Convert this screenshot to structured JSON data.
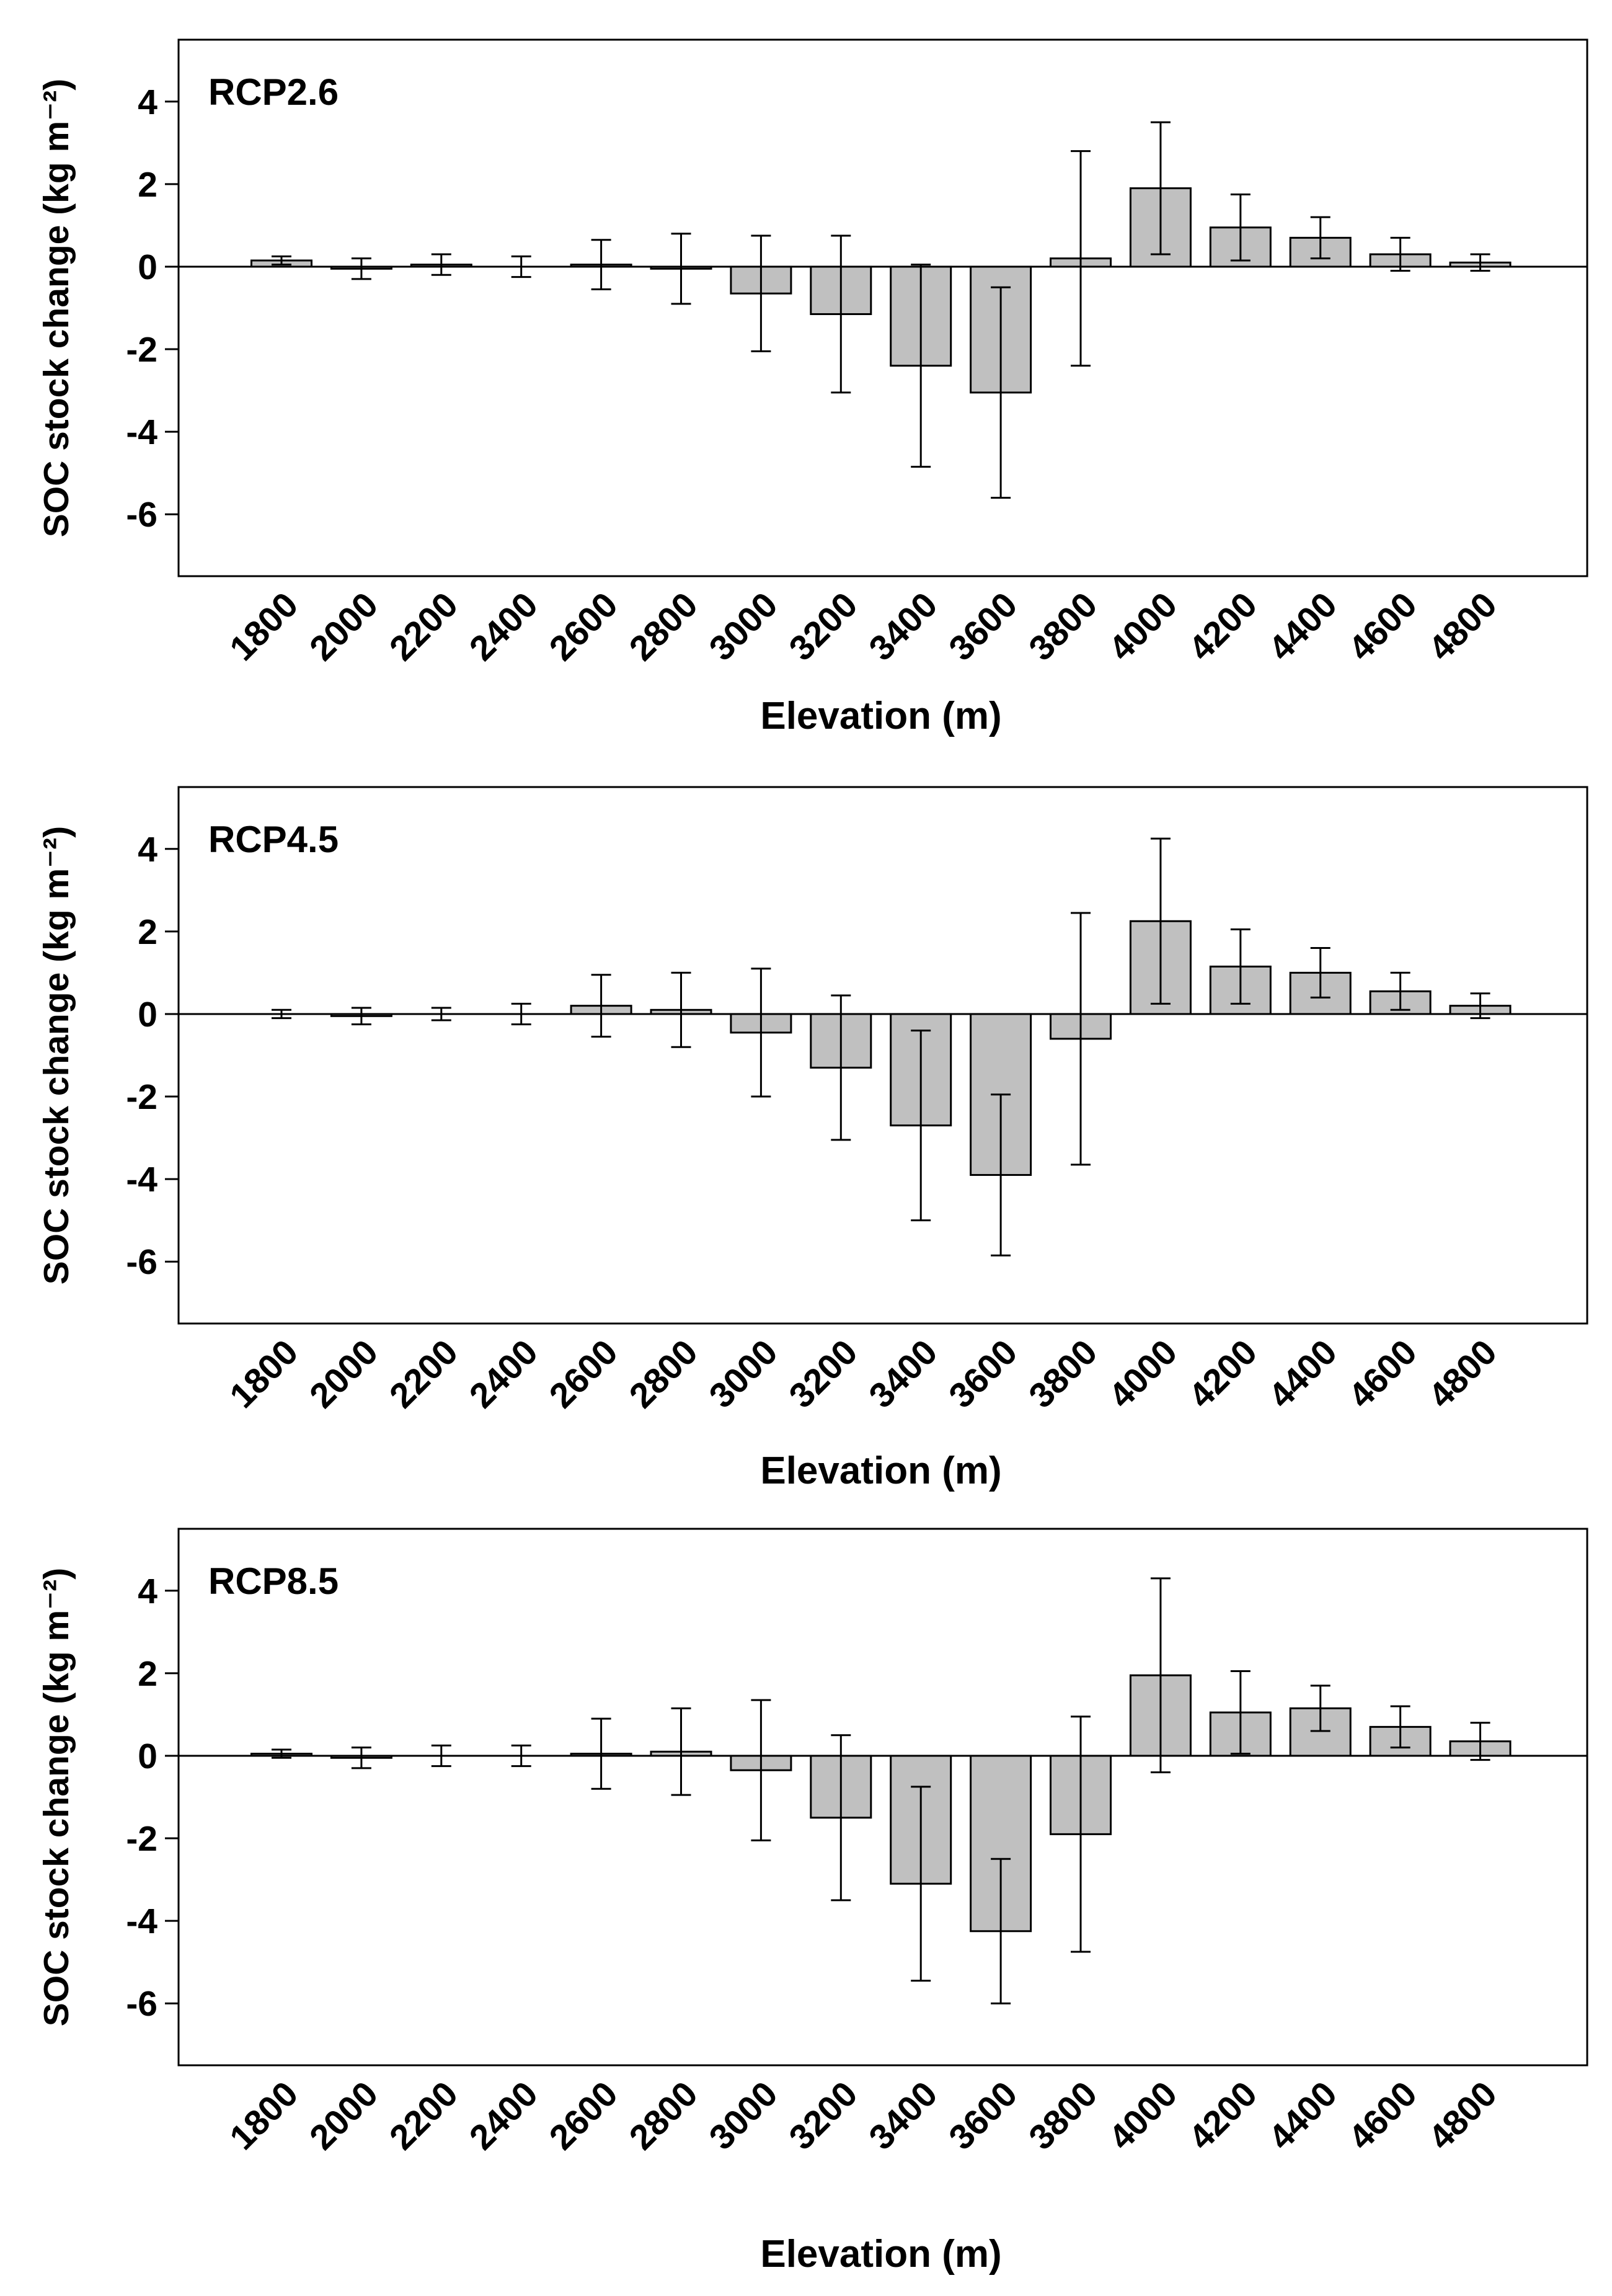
{
  "chart_data": [
    {
      "type": "bar",
      "title": "RCP2.6",
      "xlabel": "Elevation (m)",
      "ylabel": "SOC stock change (kg m⁻²)",
      "categories": [
        1800,
        2000,
        2200,
        2400,
        2600,
        2800,
        3000,
        3200,
        3400,
        3600,
        3800,
        4000,
        4200,
        4400,
        4600,
        4800
      ],
      "values": [
        0.15,
        -0.05,
        0.05,
        0,
        0.05,
        -0.05,
        -0.65,
        -1.15,
        -2.4,
        -3.05,
        0.2,
        1.9,
        0.95,
        0.7,
        0.3,
        0.1
      ],
      "errors": [
        0.1,
        0.25,
        0.25,
        0.25,
        0.6,
        0.85,
        1.4,
        1.9,
        2.45,
        2.55,
        2.6,
        1.6,
        0.8,
        0.5,
        0.4,
        0.2
      ],
      "color": "#c0c0c0",
      "ylim": [
        -7.5,
        5.5
      ],
      "yticks": [
        -6,
        -4,
        -2,
        0,
        2,
        4
      ]
    },
    {
      "type": "bar",
      "title": "RCP4.5",
      "xlabel": "Elevation (m)",
      "ylabel": "SOC stock change (kg m⁻²)",
      "categories": [
        1800,
        2000,
        2200,
        2400,
        2600,
        2800,
        3000,
        3200,
        3400,
        3600,
        3800,
        4000,
        4200,
        4400,
        4600,
        4800
      ],
      "values": [
        0,
        -0.05,
        0,
        0,
        0.2,
        0.1,
        -0.45,
        -1.3,
        -2.7,
        -3.9,
        -0.6,
        2.25,
        1.15,
        1.0,
        0.55,
        0.2
      ],
      "errors": [
        0.1,
        0.2,
        0.15,
        0.25,
        0.75,
        0.9,
        1.55,
        1.75,
        2.3,
        1.95,
        3.05,
        2.0,
        0.9,
        0.6,
        0.45,
        0.3
      ],
      "color": "#c0c0c0",
      "ylim": [
        -7.5,
        5.5
      ],
      "yticks": [
        -6,
        -4,
        -2,
        0,
        2,
        4
      ]
    },
    {
      "type": "bar",
      "title": "RCP8.5",
      "xlabel": "Elevation (m)",
      "ylabel": "SOC stock change (kg m⁻²)",
      "categories": [
        1800,
        2000,
        2200,
        2400,
        2600,
        2800,
        3000,
        3200,
        3400,
        3600,
        3800,
        4000,
        4200,
        4400,
        4600,
        4800
      ],
      "values": [
        0.05,
        -0.05,
        0,
        0,
        0.05,
        0.1,
        -0.35,
        -1.5,
        -3.1,
        -4.25,
        -1.9,
        1.95,
        1.05,
        1.15,
        0.7,
        0.35
      ],
      "errors": [
        0.1,
        0.25,
        0.25,
        0.25,
        0.85,
        1.05,
        1.7,
        2.0,
        2.35,
        1.75,
        2.85,
        2.35,
        1.0,
        0.55,
        0.5,
        0.45
      ],
      "color": "#c0c0c0",
      "ylim": [
        -7.5,
        5.5
      ],
      "yticks": [
        -6,
        -4,
        -2,
        0,
        2,
        4
      ]
    }
  ]
}
